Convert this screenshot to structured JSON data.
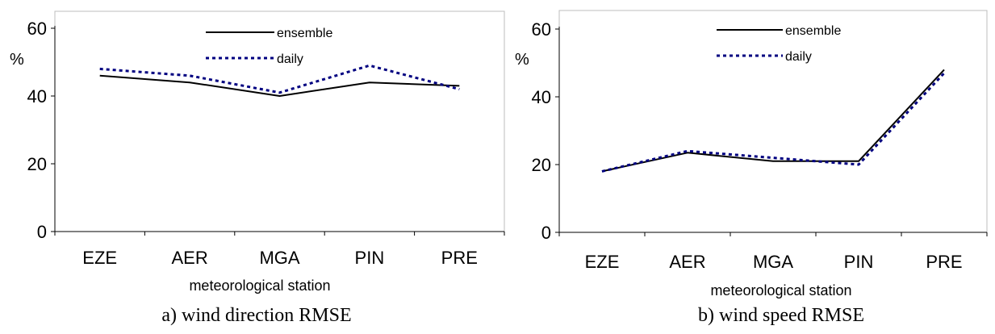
{
  "chart_data": [
    {
      "type": "line",
      "categories": [
        "EZE",
        "AER",
        "MGA",
        "PIN",
        "PRE"
      ],
      "series": [
        {
          "name": "ensemble",
          "values": [
            46,
            44,
            40,
            44,
            43
          ],
          "color": "#000000",
          "style": "solid"
        },
        {
          "name": "daily",
          "values": [
            48,
            46,
            41,
            49,
            42
          ],
          "color": "#000080",
          "style": "dotted"
        }
      ],
      "yticks": [
        "0",
        "20",
        "40",
        "60"
      ],
      "ylim": [
        0,
        60
      ],
      "ylabel": "%",
      "xlabel": "meteorological station",
      "caption": "a) wind direction RMSE",
      "legend_position": "top-center",
      "grid": false
    },
    {
      "type": "line",
      "categories": [
        "EZE",
        "AER",
        "MGA",
        "PIN",
        "PRE"
      ],
      "series": [
        {
          "name": "ensemble",
          "values": [
            18,
            23.5,
            21,
            21,
            48
          ],
          "color": "#000000",
          "style": "solid"
        },
        {
          "name": "daily",
          "values": [
            18,
            24,
            22,
            20,
            47
          ],
          "color": "#000080",
          "style": "dotted"
        }
      ],
      "yticks": [
        "0",
        "20",
        "40",
        "60"
      ],
      "ylim": [
        0,
        60
      ],
      "ylabel": "%",
      "xlabel": "meteorological station",
      "caption": "b) wind speed RMSE",
      "legend_position": "top-center",
      "grid": false
    }
  ]
}
